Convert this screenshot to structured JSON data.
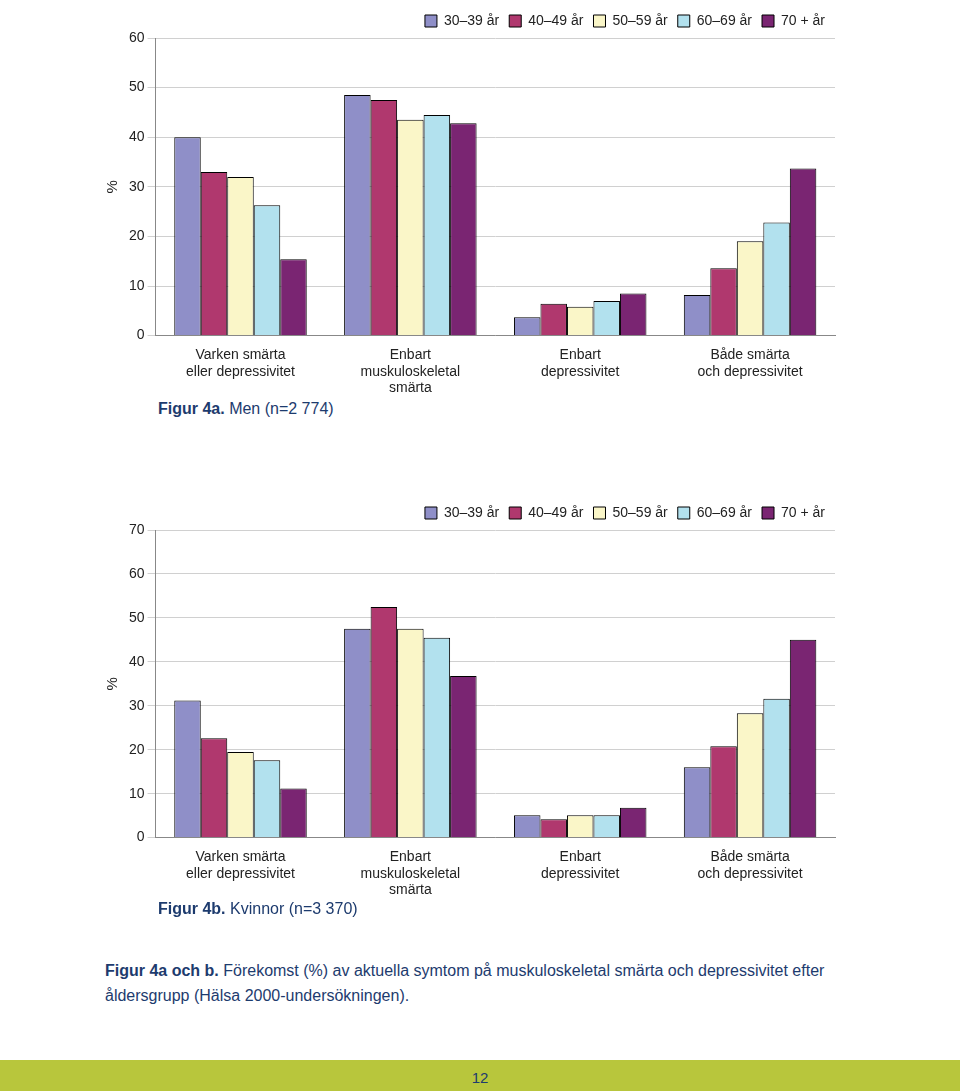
{
  "chart_data": [
    {
      "type": "bar",
      "title": "Figur 4a.",
      "subtitle": "Men (n=2 774)",
      "y_label": "%",
      "categories": [
        [
          "Varken smärta",
          "eller depressivitet"
        ],
        [
          "Enbart",
          "muskuloskeletal",
          "smärta"
        ],
        [
          "Enbart",
          "depressivitet"
        ],
        [
          "Både smärta",
          "och depressivitet"
        ]
      ],
      "series": [
        {
          "name": "30–39 år",
          "color": "#8f8fc8",
          "values": [
            40,
            48.5,
            3.7,
            8.2
          ]
        },
        {
          "name": "40–49 år",
          "color": "#b0386e",
          "values": [
            33,
            47.5,
            6.4,
            13.6
          ]
        },
        {
          "name": "50–59 år",
          "color": "#faf6c8",
          "values": [
            32,
            43.5,
            5.8,
            19
          ]
        },
        {
          "name": "60–69 år",
          "color": "#b2e1ee",
          "values": [
            26.3,
            44.5,
            7,
            22.8
          ]
        },
        {
          "name": "70 + år",
          "color": "#7a2572",
          "values": [
            15.4,
            42.8,
            8.5,
            33.7
          ]
        }
      ],
      "ylim": [
        0,
        60
      ],
      "yticks": [
        0,
        10,
        20,
        30,
        40,
        50,
        60
      ],
      "grid": true,
      "legend": "top"
    },
    {
      "type": "bar",
      "title": "Figur 4b.",
      "subtitle": "Kvinnor (n=3 370)",
      "y_label": "%",
      "categories": [
        [
          "Varken smärta",
          "eller depressivitet"
        ],
        [
          "Enbart",
          "muskuloskeletal",
          "smärta"
        ],
        [
          "Enbart",
          "depressivitet"
        ],
        [
          "Både smärta",
          "och depressivitet"
        ]
      ],
      "series": [
        {
          "name": "30–39 år",
          "color": "#8f8fc8",
          "values": [
            31.2,
            47.5,
            5.1,
            16
          ]
        },
        {
          "name": "40–49 år",
          "color": "#b0386e",
          "values": [
            22.6,
            52.5,
            4.2,
            20.8
          ]
        },
        {
          "name": "50–59 år",
          "color": "#faf6c8",
          "values": [
            19.5,
            47.5,
            5.1,
            28.3
          ]
        },
        {
          "name": "60–69 år",
          "color": "#b2e1ee",
          "values": [
            17.6,
            45.5,
            5.1,
            31.6
          ]
        },
        {
          "name": "70 + år",
          "color": "#7a2572",
          "values": [
            11.2,
            36.8,
            6.8,
            45
          ]
        }
      ],
      "ylim": [
        0,
        70
      ],
      "yticks": [
        0,
        10,
        20,
        30,
        40,
        50,
        60,
        70
      ],
      "grid": true,
      "legend": "top"
    }
  ],
  "caption": {
    "label": "Figur 4a och b.",
    "text": "Förekomst (%) av aktuella symtom på muskuloskeletal smärta och depressivitet efter åldersgrupp (Hälsa 2000-undersökningen)."
  },
  "page_number": 12
}
